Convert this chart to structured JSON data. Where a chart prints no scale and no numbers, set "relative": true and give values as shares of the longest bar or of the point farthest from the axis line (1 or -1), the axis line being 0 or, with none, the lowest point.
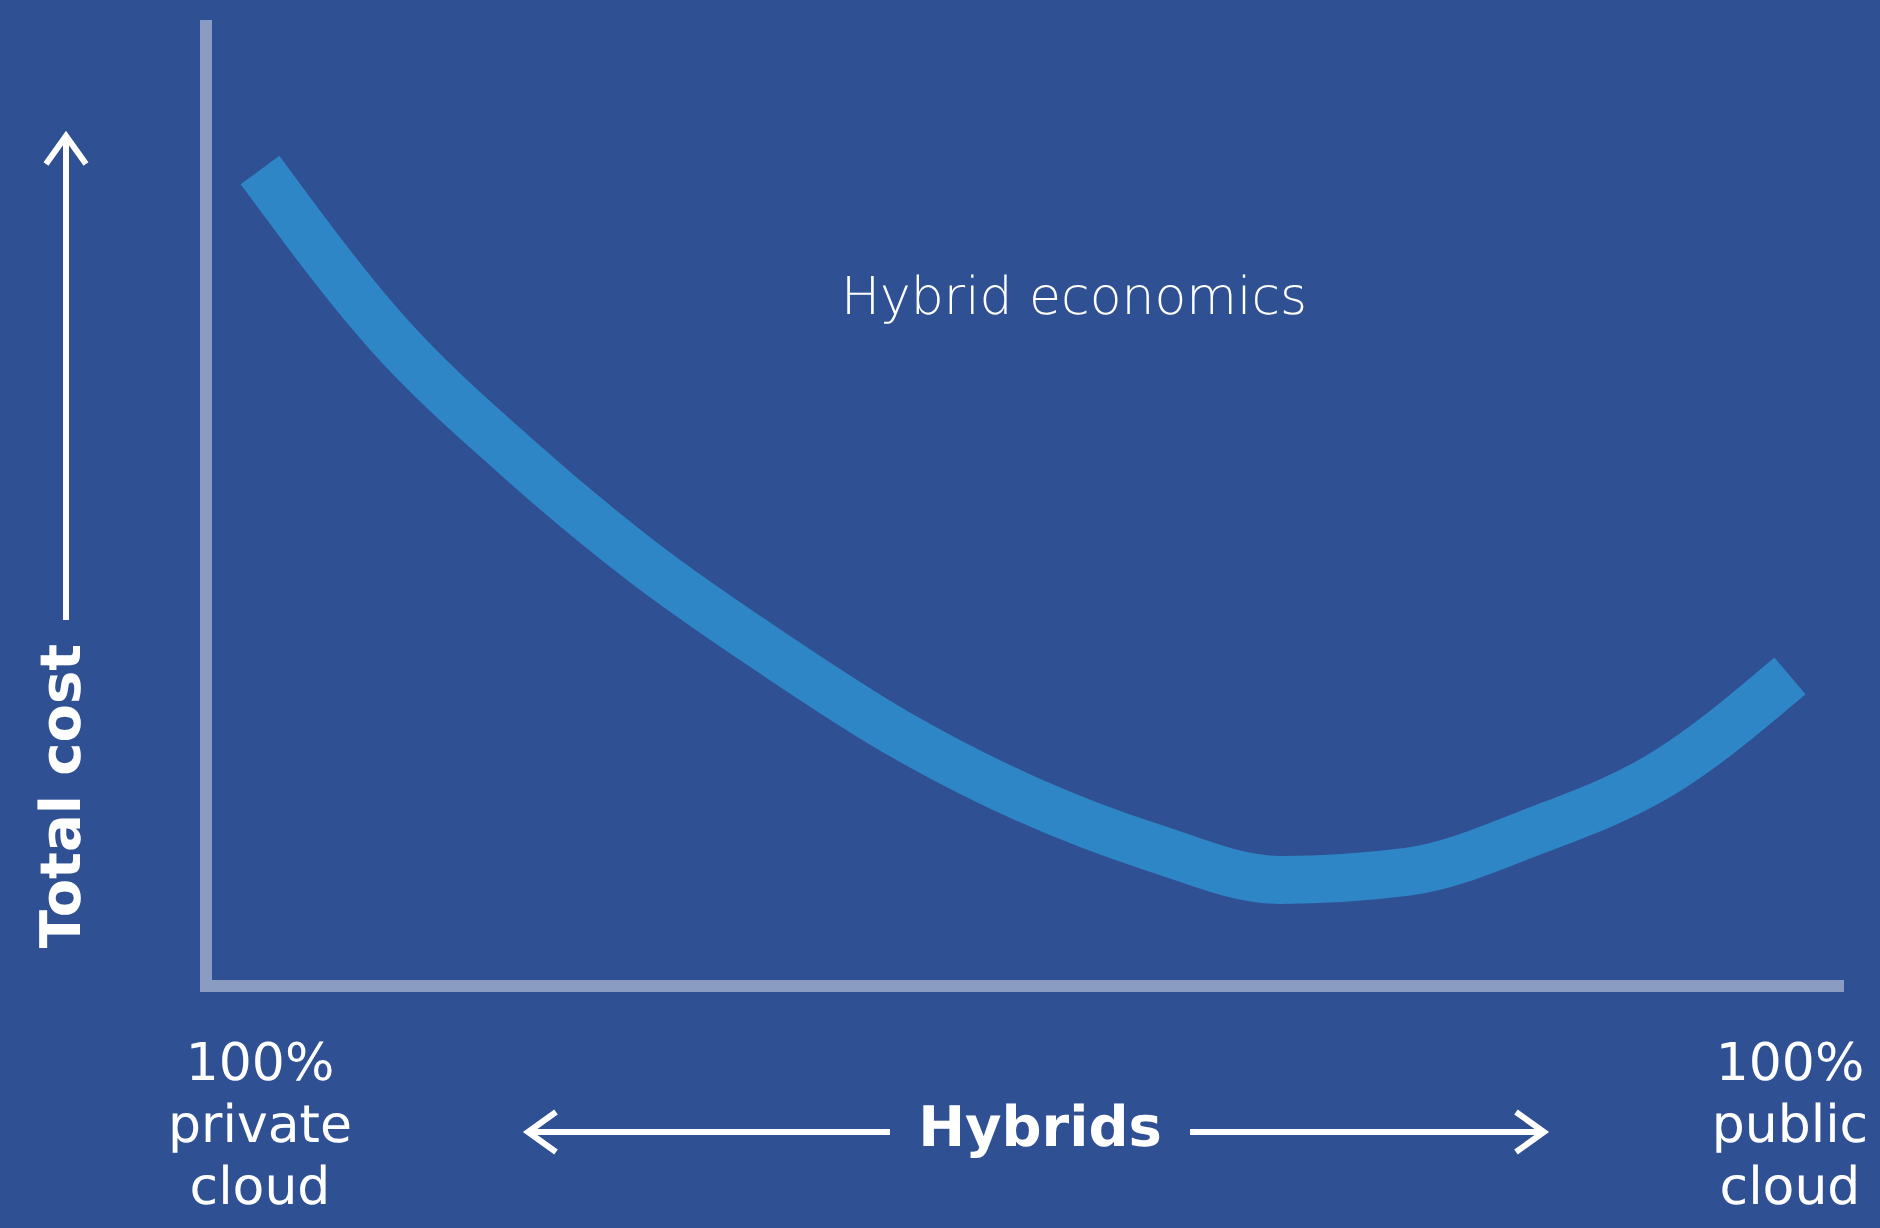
{
  "chart_data": {
    "type": "line",
    "relative": true,
    "title": "Hybrid economics",
    "xlabel": "Hybrids",
    "ylabel": "Total cost",
    "categories": [
      "100% private cloud",
      null,
      null,
      null,
      null,
      null,
      null,
      null,
      null,
      null,
      null,
      null,
      "100% public cloud"
    ],
    "series": [
      {
        "color": "#2f86c6",
        "values": [
          1,
          0.8,
          0.65,
          0.52,
          0.41,
          0.31,
          0.23,
          0.17,
          0.13,
          0.14,
          0.19,
          0.26,
          0.38
        ]
      }
    ],
    "marker": "none",
    "line_style": "solid"
  }
}
